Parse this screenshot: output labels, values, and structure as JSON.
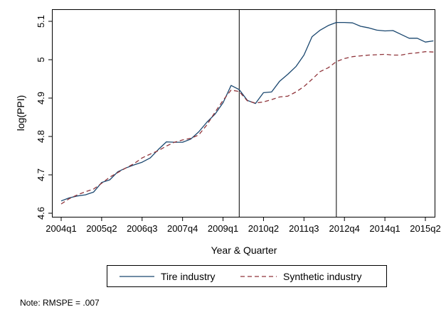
{
  "chart_data": {
    "type": "line",
    "title": "",
    "xlabel": "Year & Quarter",
    "ylabel": "log(PPI)",
    "note": "Note: RMSPE = .007",
    "x_tick_labels": [
      "2004q1",
      "2005q2",
      "2006q3",
      "2007q4",
      "2009q1",
      "2010q2",
      "2011q3",
      "2012q4",
      "2014q1",
      "2015q2"
    ],
    "y_ticks": [
      4.6,
      4.7,
      4.8,
      4.9,
      5,
      5.1
    ],
    "y_tick_labels": [
      "4.6",
      "4.7",
      "4.8",
      "4.9",
      "5",
      "5.1"
    ],
    "ylim": [
      4.59,
      5.11
    ],
    "xlim": [
      "2004q1",
      "2015q2"
    ],
    "grid": false,
    "legend_position": "bottom",
    "vertical_lines": [
      "2009q3",
      "2012q3"
    ],
    "x": [
      "2004q1",
      "2004q2",
      "2004q3",
      "2004q4",
      "2005q1",
      "2005q2",
      "2005q3",
      "2005q4",
      "2006q1",
      "2006q2",
      "2006q3",
      "2006q4",
      "2007q1",
      "2007q2",
      "2007q3",
      "2007q4",
      "2008q1",
      "2008q2",
      "2008q3",
      "2008q4",
      "2009q1",
      "2009q2",
      "2009q3",
      "2009q4",
      "2010q1",
      "2010q2",
      "2010q3",
      "2010q4",
      "2011q1",
      "2011q2",
      "2011q3",
      "2011q4",
      "2012q1",
      "2012q2",
      "2012q3",
      "2012q4",
      "2013q1",
      "2013q2",
      "2013q3",
      "2013q4",
      "2014q1",
      "2014q2",
      "2014q3",
      "2014q4",
      "2015q1",
      "2015q2",
      "2015q3"
    ],
    "series": [
      {
        "name": "Tire industry",
        "color": "#1a476f",
        "dash": "solid",
        "values": [
          4.632,
          4.64,
          4.645,
          4.648,
          4.655,
          4.68,
          4.687,
          4.708,
          4.718,
          4.726,
          4.733,
          4.744,
          4.766,
          4.786,
          4.785,
          4.785,
          4.793,
          4.812,
          4.837,
          4.858,
          4.888,
          4.933,
          4.922,
          4.894,
          4.886,
          4.914,
          4.916,
          4.944,
          4.962,
          4.982,
          5.012,
          5.06,
          5.077,
          5.089,
          5.097,
          5.097,
          5.096,
          5.087,
          5.083,
          5.077,
          5.075,
          5.076,
          5.066,
          5.056,
          5.056,
          5.046,
          5.049
        ]
      },
      {
        "name": "Synthetic industry",
        "color": "#90353b",
        "dash": "dashed",
        "values": [
          4.624,
          4.638,
          4.648,
          4.656,
          4.663,
          4.678,
          4.694,
          4.706,
          4.718,
          4.729,
          4.744,
          4.754,
          4.763,
          4.775,
          4.785,
          4.791,
          4.795,
          4.804,
          4.83,
          4.863,
          4.894,
          4.921,
          4.917,
          4.893,
          4.887,
          4.89,
          4.896,
          4.903,
          4.905,
          4.916,
          4.93,
          4.949,
          4.969,
          4.979,
          4.995,
          5.003,
          5.008,
          5.01,
          5.012,
          5.013,
          5.014,
          5.012,
          5.012,
          5.016,
          5.018,
          5.021,
          5.02
        ]
      }
    ]
  }
}
